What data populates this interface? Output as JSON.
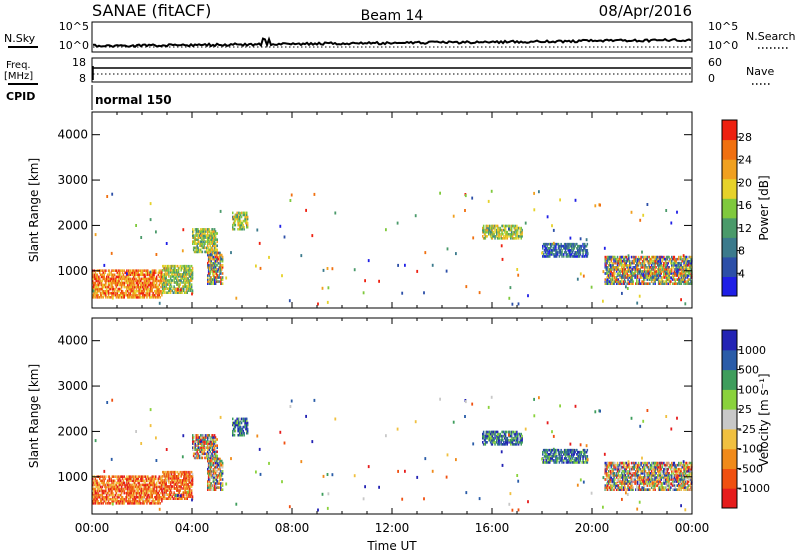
{
  "header": {
    "station": "SANAE (fitACF)",
    "beam": "Beam 14",
    "date": "08/Apr/2016"
  },
  "sky_panel": {
    "left_label": "N.Sky",
    "left_ticks": [
      "10^5",
      "10^0"
    ],
    "right_label": "N.Search",
    "right_ticks": [
      "10^5",
      "10^0"
    ]
  },
  "freq_panel": {
    "left_label_line1": "Freq.",
    "left_label_line2": "[MHz]",
    "left_ticks": [
      "18",
      "8"
    ],
    "right_label": "Nave",
    "right_ticks": [
      "60",
      "0"
    ]
  },
  "cpid": {
    "label": "CPID",
    "value": "normal 150"
  },
  "colors": {
    "power_scale": [
      "#1f1fe6",
      "#2c4fa8",
      "#3b7a8c",
      "#4a9a6a",
      "#7fc93d",
      "#e6d22a",
      "#f0a020",
      "#f07010",
      "#ee2010"
    ],
    "velocity_scale": [
      "#e61c1c",
      "#f05010",
      "#f08a1a",
      "#f0c040",
      "#c8c8c8",
      "#8ad23c",
      "#3e9d5c",
      "#2a5ca8",
      "#2323b4"
    ]
  },
  "chart_data": [
    {
      "type": "heatmap",
      "panel": "power",
      "ylabel": "Slant Range [km]",
      "yticks": [
        "1000",
        "2000",
        "3000",
        "4000"
      ],
      "ylim": [
        180,
        4500
      ],
      "xlim": [
        0,
        24
      ],
      "xticks": [
        "00:00",
        "04:00",
        "08:00",
        "12:00",
        "16:00",
        "20:00",
        "00:00"
      ],
      "colorbar_label": "Power [dB]",
      "colorbar_ticks": [
        "4",
        "8",
        "12",
        "16",
        "20",
        "24",
        "28"
      ],
      "colorbar_range": [
        0,
        31
      ],
      "regions": [
        {
          "t": [
            0.0,
            2.8
          ],
          "r": [
            400,
            1000
          ],
          "level": "high"
        },
        {
          "t": [
            2.8,
            4.0
          ],
          "r": [
            500,
            1100
          ],
          "level": "mid"
        },
        {
          "t": [
            4.0,
            5.0
          ],
          "r": [
            1400,
            1900
          ],
          "level": "mid"
        },
        {
          "t": [
            4.6,
            5.2
          ],
          "r": [
            700,
            1400
          ],
          "level": "mixed"
        },
        {
          "t": [
            5.6,
            6.2
          ],
          "r": [
            1900,
            2300
          ],
          "level": "mid"
        },
        {
          "t": [
            15.6,
            17.2
          ],
          "r": [
            1700,
            2000
          ],
          "level": "mid"
        },
        {
          "t": [
            18.0,
            19.8
          ],
          "r": [
            1300,
            1600
          ],
          "level": "low"
        },
        {
          "t": [
            20.5,
            24.0
          ],
          "r": [
            700,
            1300
          ],
          "level": "mixed"
        }
      ]
    },
    {
      "type": "heatmap",
      "panel": "velocity",
      "ylabel": "Slant Range [km]",
      "yticks": [
        "1000",
        "2000",
        "3000",
        "4000"
      ],
      "ylim": [
        180,
        4500
      ],
      "xlim": [
        0,
        24
      ],
      "xticks": [
        "00:00",
        "04:00",
        "08:00",
        "12:00",
        "16:00",
        "20:00",
        "00:00"
      ],
      "xlabel": "Time UT",
      "colorbar_label": "Velocity [m s⁻¹]",
      "colorbar_ticks": [
        "-1000",
        "-500",
        "-100",
        "-25",
        "25",
        "100",
        "500",
        "1000"
      ],
      "regions": [
        {
          "t": [
            0.0,
            2.8
          ],
          "r": [
            400,
            1000
          ],
          "level": "low"
        },
        {
          "t": [
            2.8,
            4.0
          ],
          "r": [
            500,
            1100
          ],
          "level": "low"
        },
        {
          "t": [
            4.0,
            5.0
          ],
          "r": [
            1400,
            1900
          ],
          "level": "mixed"
        },
        {
          "t": [
            4.6,
            5.2
          ],
          "r": [
            700,
            1400
          ],
          "level": "mixed"
        },
        {
          "t": [
            5.6,
            6.2
          ],
          "r": [
            1900,
            2300
          ],
          "level": "high"
        },
        {
          "t": [
            15.6,
            17.2
          ],
          "r": [
            1700,
            2000
          ],
          "level": "high"
        },
        {
          "t": [
            18.0,
            19.8
          ],
          "r": [
            1300,
            1600
          ],
          "level": "high"
        },
        {
          "t": [
            20.5,
            24.0
          ],
          "r": [
            700,
            1300
          ],
          "level": "mixed"
        }
      ]
    }
  ]
}
